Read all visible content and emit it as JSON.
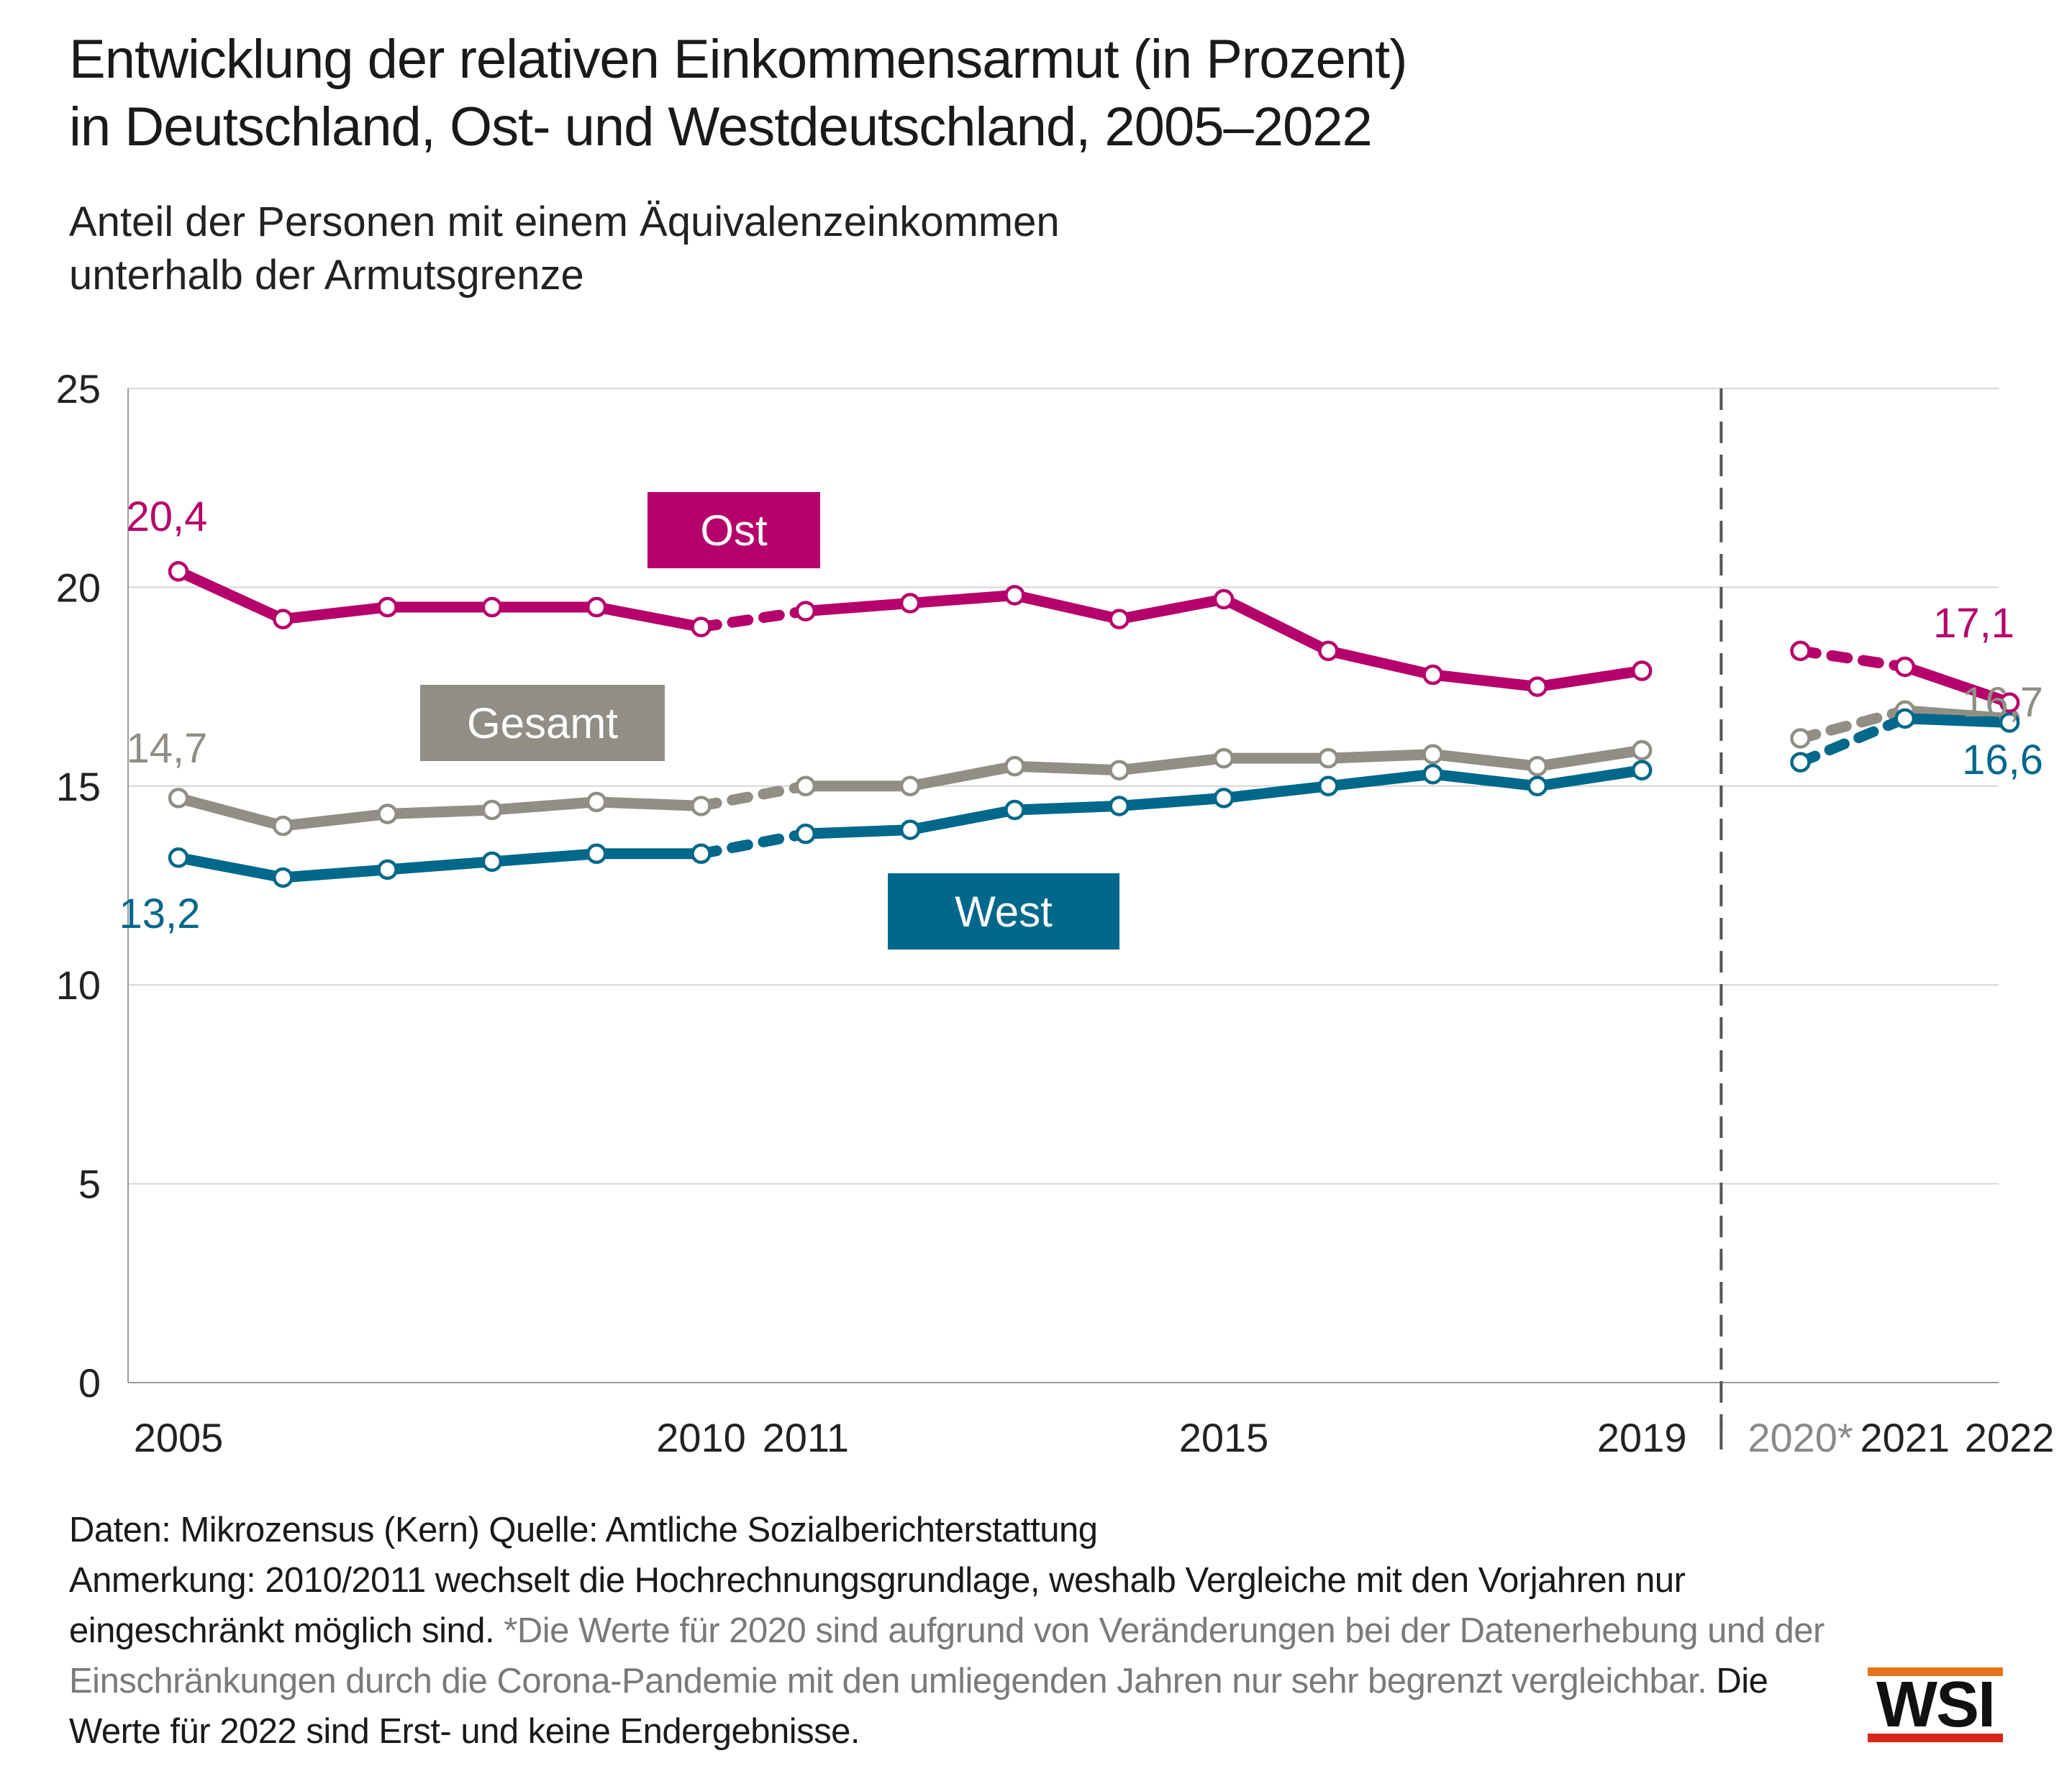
{
  "header": {
    "title_line1": "Entwicklung der relativen Einkommensarmut (in Prozent)",
    "title_line2": "in Deutschland, Ost- und Westdeutschland, 2005–2022",
    "subtitle_line1": "Anteil der Personen mit einem Äquivalenzeinkommen",
    "subtitle_line2": "unterhalb der Armutsgrenze"
  },
  "chart_data": {
    "type": "line",
    "title": "Entwicklung der relativen Einkommensarmut (in Prozent) in Deutschland, Ost- und Westdeutschland, 2005–2022",
    "subtitle": "Anteil der Personen mit einem Äquivalenzeinkommen unterhalb der Armutsgrenze",
    "xlabel": "",
    "ylabel": "",
    "x": [
      2005,
      2006,
      2007,
      2008,
      2009,
      2010,
      2011,
      2012,
      2013,
      2014,
      2015,
      2016,
      2017,
      2018,
      2019,
      2020,
      2021,
      2022
    ],
    "x_tick_labels": [
      {
        "x": 2005,
        "label": "2005"
      },
      {
        "x": 2010,
        "label": "2010"
      },
      {
        "x": 2011,
        "label": "2011"
      },
      {
        "x": 2015,
        "label": "2015"
      },
      {
        "x": 2019,
        "label": "2019"
      },
      {
        "x": 2020,
        "label": "2020*",
        "muted": true
      },
      {
        "x": 2021,
        "label": "2021"
      },
      {
        "x": 2022,
        "label": "2022"
      }
    ],
    "ylim": [
      0,
      25
    ],
    "y_ticks": [
      0,
      5,
      10,
      15,
      20,
      25
    ],
    "grid": true,
    "breaks": [
      "2010/2011 dashed (Hochrechnungsgrundlage)",
      "2019 | 2020 vertical dashed separator"
    ],
    "series": [
      {
        "name": "Ost",
        "color": "#b5006b",
        "values": [
          20.4,
          19.2,
          19.5,
          19.5,
          19.5,
          19.0,
          19.4,
          19.6,
          19.8,
          19.2,
          19.7,
          18.4,
          17.8,
          17.5,
          17.9,
          18.4,
          18.0,
          17.1
        ],
        "start_label": "20,4",
        "end_label": "17,1"
      },
      {
        "name": "Gesamt",
        "color": "#918f85",
        "values": [
          14.7,
          14.0,
          14.3,
          14.4,
          14.6,
          14.5,
          15.0,
          15.0,
          15.5,
          15.4,
          15.7,
          15.7,
          15.8,
          15.5,
          15.9,
          16.2,
          16.9,
          16.7
        ],
        "start_label": "14,7",
        "end_label": "16,7"
      },
      {
        "name": "West",
        "color": "#00688a",
        "values": [
          13.2,
          12.7,
          12.9,
          13.1,
          13.3,
          13.3,
          13.8,
          13.9,
          14.4,
          14.5,
          14.7,
          15.0,
          15.3,
          15.0,
          15.4,
          15.6,
          16.7,
          16.6
        ],
        "start_label": "13,2",
        "end_label": "16,6"
      }
    ]
  },
  "footer": {
    "line1": "Daten: Mikrozensus (Kern)   Quelle: Amtliche Sozialberichterstattung",
    "anm_black": "Anmerkung: 2010/2011 wechselt die Hochrechnungsgrundlage, weshalb Vergleiche mit den Vorjahren nur eingeschränkt möglich sind.",
    "anm_grey": "*Die Werte für 2020 sind aufgrund von Veränderungen bei der Datenerhebung und der Einschränkungen durch die Corona-Pandemie mit den umliegenden Jahren nur sehr begrenzt vergleichbar.",
    "anm_black_end": "Die Werte für 2022 sind Erst- und keine Endergebnisse."
  },
  "logo": {
    "text": "WSI"
  }
}
